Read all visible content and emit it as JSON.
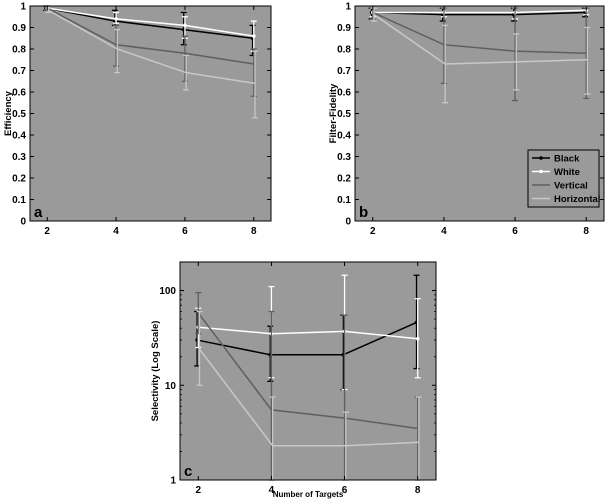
{
  "colors": {
    "background": "#9a9a9a",
    "black": "#000000",
    "white": "#ffffff",
    "vertical": "#5f5f5f",
    "horizontal": "#c8c8c8"
  },
  "chart_data": [
    {
      "type": "line",
      "panel_label": "a",
      "ylabel": "Efficiency",
      "xlabel": "",
      "x": [
        2,
        4,
        6,
        8
      ],
      "xlim": [
        1.5,
        8.5
      ],
      "ylim": [
        0,
        1
      ],
      "yscale": "linear",
      "xticks": [
        "2",
        "4",
        "6",
        "8"
      ],
      "yticks": [
        0,
        0.1,
        0.2,
        0.3,
        0.4,
        0.5,
        0.6,
        0.7,
        0.8,
        0.9,
        1
      ],
      "yticklabels": [
        "0",
        "0.1",
        "0.2",
        "0.3",
        "0.4",
        "0.5",
        "0.6",
        "0.7",
        "0.8",
        "0.9",
        "1"
      ],
      "series": [
        {
          "name": "Black",
          "color": "#000000",
          "marker": true,
          "values": [
            0.99,
            0.93,
            0.89,
            0.85
          ],
          "err_low": [
            0.98,
            0.91,
            0.82,
            0.77
          ],
          "err_high": [
            1.0,
            0.98,
            0.97,
            0.91
          ]
        },
        {
          "name": "White",
          "color": "#ffffff",
          "marker": true,
          "values": [
            0.99,
            0.94,
            0.91,
            0.86
          ],
          "err_low": [
            0.98,
            0.92,
            0.85,
            0.79
          ],
          "err_high": [
            1.0,
            0.97,
            0.95,
            0.93
          ]
        },
        {
          "name": "Vertical",
          "color": "#5f5f5f",
          "marker": false,
          "values": [
            0.99,
            0.82,
            0.78,
            0.73
          ],
          "err_low": [
            0.98,
            0.72,
            0.65,
            0.58
          ],
          "err_high": [
            1.0,
            0.91,
            0.86,
            0.8
          ]
        },
        {
          "name": "Horizontal",
          "color": "#c8c8c8",
          "marker": false,
          "values": [
            0.98,
            0.8,
            0.69,
            0.64
          ],
          "err_low": [
            0.97,
            0.69,
            0.61,
            0.48
          ],
          "err_high": [
            0.99,
            0.89,
            0.77,
            0.79
          ]
        }
      ],
      "legend": null
    },
    {
      "type": "line",
      "panel_label": "b",
      "ylabel": "Filter-Fidelity",
      "xlabel": "",
      "x": [
        2,
        4,
        6,
        8
      ],
      "xlim": [
        1.5,
        8.5
      ],
      "ylim": [
        0,
        1
      ],
      "yscale": "linear",
      "xticks": [
        "2",
        "4",
        "6",
        "8"
      ],
      "yticks": [
        0,
        0.1,
        0.2,
        0.3,
        0.4,
        0.5,
        0.6,
        0.7,
        0.8,
        0.9,
        1
      ],
      "yticklabels": [
        "0",
        "0.1",
        "0.2",
        "0.3",
        "0.4",
        "0.5",
        "0.6",
        "0.7",
        "0.8",
        "0.9",
        "1"
      ],
      "series": [
        {
          "name": "Black",
          "color": "#000000",
          "marker": true,
          "values": [
            0.97,
            0.96,
            0.96,
            0.97
          ],
          "err_low": [
            0.94,
            0.93,
            0.93,
            0.95
          ],
          "err_high": [
            0.99,
            0.99,
            0.99,
            0.99
          ]
        },
        {
          "name": "White",
          "color": "#ffffff",
          "marker": true,
          "values": [
            0.97,
            0.97,
            0.97,
            0.98
          ],
          "err_low": [
            0.95,
            0.95,
            0.94,
            0.96
          ],
          "err_high": [
            0.99,
            0.99,
            0.99,
            1.0
          ]
        },
        {
          "name": "Vertical",
          "color": "#5f5f5f",
          "marker": false,
          "values": [
            0.97,
            0.82,
            0.79,
            0.78
          ],
          "err_low": [
            0.94,
            0.64,
            0.56,
            0.57
          ],
          "err_high": [
            0.99,
            0.99,
            0.99,
            0.99
          ]
        },
        {
          "name": "Horizontal",
          "color": "#c8c8c8",
          "marker": false,
          "values": [
            0.96,
            0.73,
            0.74,
            0.75
          ],
          "err_low": [
            0.93,
            0.55,
            0.61,
            0.59
          ],
          "err_high": [
            0.99,
            0.91,
            0.87,
            0.9
          ]
        }
      ],
      "legend": {
        "position": "lower-right",
        "entries": [
          "Black",
          "White",
          "Vertical",
          "Horizontal"
        ]
      }
    },
    {
      "type": "line",
      "panel_label": "c",
      "ylabel": "Selectivity (Log Scale)",
      "xlabel": "Number of Targets",
      "x": [
        2,
        4,
        6,
        8
      ],
      "xlim": [
        1.5,
        8.5
      ],
      "ylim": [
        1,
        200
      ],
      "yscale": "log",
      "xticks": [
        "2",
        "4",
        "6",
        "8"
      ],
      "yticks": [
        1,
        10,
        100
      ],
      "yticklabels": [
        "1",
        "10",
        "100"
      ],
      "series": [
        {
          "name": "Black",
          "color": "#000000",
          "marker": true,
          "values": [
            30,
            21,
            21,
            46
          ],
          "err_low": [
            16,
            11,
            9,
            15
          ],
          "err_high": [
            60,
            42,
            55,
            145
          ]
        },
        {
          "name": "White",
          "color": "#ffffff",
          "marker": true,
          "values": [
            41,
            35,
            37,
            31
          ],
          "err_low": [
            25,
            12,
            9,
            12
          ],
          "err_high": [
            65,
            110,
            145,
            82
          ]
        },
        {
          "name": "Vertical",
          "color": "#5f5f5f",
          "marker": false,
          "values": [
            58,
            5.5,
            4.5,
            3.5
          ],
          "err_low": [
            35,
            1,
            1,
            1
          ],
          "err_high": [
            95,
            60,
            55,
            7.5
          ]
        },
        {
          "name": "Horizontal",
          "color": "#c8c8c8",
          "marker": false,
          "values": [
            24,
            2.3,
            2.3,
            2.5
          ],
          "err_low": [
            10,
            1,
            1,
            1
          ],
          "err_high": [
            60,
            7.5,
            5.2,
            7.5
          ]
        }
      ],
      "legend": null
    }
  ]
}
